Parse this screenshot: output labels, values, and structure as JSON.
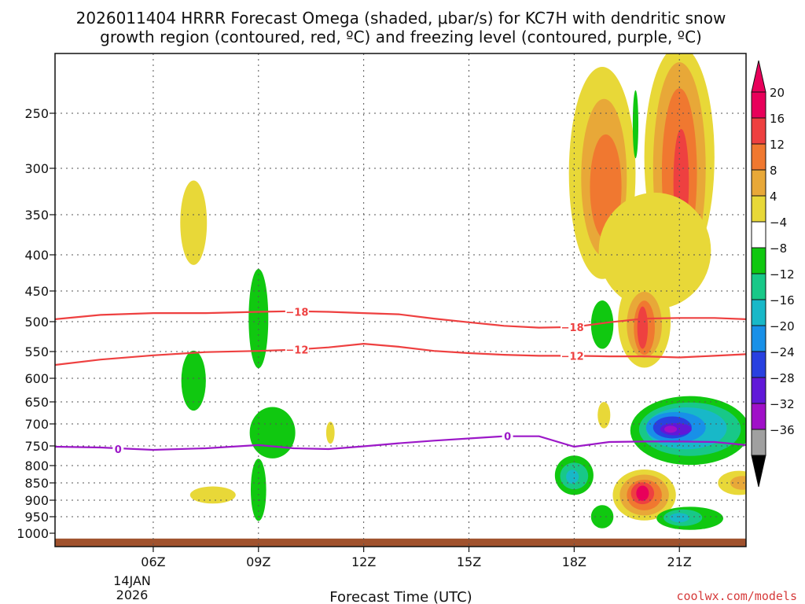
{
  "chart_data": {
    "type": "contour",
    "title_line1": "2026011404 HRRR Forecast Omega (shaded, μbar/s) for KC7H with dendritic snow",
    "title_line2": "growth region (contoured, red, ºC) and freezing level (contoured, purple, ºC)",
    "xlabel": "Forecast Time (UTC)",
    "ylabel": "",
    "credit": "coolwx.com/models",
    "x_range": [
      3.2,
      22.9
    ],
    "y_range_hpa": [
      200,
      1025
    ],
    "x_ticks": [
      {
        "value": 6,
        "label": "06Z"
      },
      {
        "value": 9,
        "label": "09Z"
      },
      {
        "value": 12,
        "label": "12Z"
      },
      {
        "value": 15,
        "label": "15Z"
      },
      {
        "value": 18,
        "label": "18Z"
      },
      {
        "value": 21,
        "label": "21Z"
      }
    ],
    "date_label_line1": "14JAN",
    "date_label_line2": "2026",
    "y_ticks": [
      250,
      300,
      350,
      400,
      450,
      500,
      550,
      600,
      650,
      700,
      750,
      800,
      850,
      900,
      950,
      1000
    ],
    "grid_y_levels": [
      250,
      300,
      350,
      400,
      450,
      500,
      550,
      600,
      650,
      700,
      750,
      800,
      850,
      900,
      950
    ],
    "colorbar": {
      "labels": [
        "20",
        "16",
        "12",
        "8",
        "4",
        "−4",
        "−8",
        "−12",
        "−16",
        "−20",
        "−24",
        "−28",
        "−32",
        "−36"
      ],
      "colors": [
        "#e8005a",
        "#ee4040",
        "#f07830",
        "#e8a838",
        "#e8d838",
        "#ffffff",
        "#10c810",
        "#18c888",
        "#18b8c8",
        "#1890e8",
        "#2840e0",
        "#6018d8",
        "#a010c8",
        "#a0a0a0"
      ]
    },
    "temperature_contours": [
      {
        "name": "dgz-minus-18",
        "label": "−18",
        "color": "#ee4040",
        "points": [
          [
            3.2,
            496
          ],
          [
            4.5,
            489
          ],
          [
            6,
            486
          ],
          [
            7.5,
            486
          ],
          [
            9,
            484
          ],
          [
            10,
            483
          ],
          [
            11,
            484
          ],
          [
            12,
            486
          ],
          [
            13,
            488
          ],
          [
            14,
            495
          ],
          [
            15,
            501
          ],
          [
            16,
            507
          ],
          [
            17,
            510
          ],
          [
            18,
            509
          ],
          [
            19,
            501
          ],
          [
            20,
            495
          ],
          [
            21,
            494
          ],
          [
            22,
            494
          ],
          [
            22.9,
            496
          ]
        ],
        "label_positions": [
          [
            10.1,
            484
          ],
          [
            17.95,
            509
          ]
        ]
      },
      {
        "name": "dgz-minus-12",
        "label": "−12",
        "color": "#ee4040",
        "points": [
          [
            3.2,
            575
          ],
          [
            4.5,
            565
          ],
          [
            6,
            557
          ],
          [
            7.5,
            551
          ],
          [
            9,
            549
          ],
          [
            10,
            547
          ],
          [
            11,
            543
          ],
          [
            12,
            537
          ],
          [
            13,
            542
          ],
          [
            14,
            549
          ],
          [
            15,
            553
          ],
          [
            16,
            556
          ],
          [
            17,
            558
          ],
          [
            18,
            558
          ],
          [
            19,
            559
          ],
          [
            20,
            559
          ],
          [
            21,
            561
          ],
          [
            22,
            558
          ],
          [
            22.9,
            555
          ]
        ],
        "label_positions": [
          [
            10.1,
            547
          ],
          [
            17.95,
            558
          ]
        ]
      },
      {
        "name": "freezing-level-0",
        "label": "0",
        "color": "#9c18c8",
        "points": [
          [
            3.2,
            752
          ],
          [
            4.5,
            754
          ],
          [
            5,
            756
          ],
          [
            6,
            760
          ],
          [
            7.5,
            756
          ],
          [
            9,
            748
          ],
          [
            10,
            756
          ],
          [
            11,
            758
          ],
          [
            12,
            751
          ],
          [
            13,
            744
          ],
          [
            14,
            738
          ],
          [
            15,
            733
          ],
          [
            16,
            728
          ],
          [
            17,
            728
          ],
          [
            18,
            752
          ],
          [
            19,
            741
          ],
          [
            20,
            740
          ],
          [
            21,
            740
          ],
          [
            22,
            741
          ],
          [
            22.9,
            748
          ]
        ],
        "label_positions": [
          [
            5.0,
            758
          ],
          [
            16.1,
            728
          ]
        ]
      }
    ],
    "omega_regions": [
      {
        "value": 4,
        "color": "#e8d838",
        "center": [
          7.15,
          360
        ],
        "radii": [
          0.38,
          50
        ]
      },
      {
        "value": -4,
        "color": "#10c810",
        "center": [
          9.0,
          495
        ],
        "radii": [
          0.28,
          80
        ]
      },
      {
        "value": -4,
        "color": "#10c810",
        "center": [
          7.15,
          605
        ],
        "radii": [
          0.35,
          60
        ]
      },
      {
        "value": -4,
        "color": "#10c810",
        "center": [
          9.4,
          720
        ],
        "radii": [
          0.65,
          60
        ]
      },
      {
        "value": -4,
        "color": "#10c810",
        "center": [
          9.0,
          870
        ],
        "radii": [
          0.22,
          90
        ]
      },
      {
        "value": 4,
        "color": "#e8d838",
        "center": [
          11.05,
          720
        ],
        "radii": [
          0.12,
          25
        ]
      },
      {
        "value": 4,
        "color": "#e8d838",
        "center": [
          7.7,
          885
        ],
        "radii": [
          0.65,
          25
        ]
      },
      {
        "value": 4,
        "color": "#e8d838",
        "center": [
          18.8,
          305
        ],
        "radii": [
          0.95,
          110
        ]
      },
      {
        "value": 8,
        "color": "#e8a838",
        "center": [
          18.85,
          310
        ],
        "radii": [
          0.65,
          80
        ]
      },
      {
        "value": 12,
        "color": "#f07830",
        "center": [
          18.9,
          320
        ],
        "radii": [
          0.45,
          55
        ]
      },
      {
        "value": 4,
        "color": "#e8d838",
        "center": [
          21.0,
          290
        ],
        "radii": [
          1.0,
          140
        ]
      },
      {
        "value": 8,
        "color": "#e8a838",
        "center": [
          21.0,
          300
        ],
        "radii": [
          0.75,
          115
        ]
      },
      {
        "value": 12,
        "color": "#f07830",
        "center": [
          21.0,
          305
        ],
        "radii": [
          0.5,
          85
        ]
      },
      {
        "value": 16,
        "color": "#ee4040",
        "center": [
          21.05,
          315
        ],
        "radii": [
          0.22,
          55
        ]
      },
      {
        "value": 4,
        "color": "#e8d838",
        "center": [
          20.3,
          395
        ],
        "radii": [
          1.6,
          75
        ]
      },
      {
        "value": 4,
        "color": "#e8d838",
        "center": [
          20.0,
          500
        ],
        "radii": [
          0.75,
          75
        ]
      },
      {
        "value": 8,
        "color": "#e8a838",
        "center": [
          20.0,
          505
        ],
        "radii": [
          0.5,
          55
        ]
      },
      {
        "value": 12,
        "color": "#f07830",
        "center": [
          20.0,
          510
        ],
        "radii": [
          0.3,
          45
        ]
      },
      {
        "value": 16,
        "color": "#ee4040",
        "center": [
          19.95,
          510
        ],
        "radii": [
          0.15,
          35
        ]
      },
      {
        "value": -4,
        "color": "#10c810",
        "center": [
          19.75,
          260
        ],
        "radii": [
          0.08,
          30
        ]
      },
      {
        "value": -4,
        "color": "#10c810",
        "center": [
          18.8,
          505
        ],
        "radii": [
          0.32,
          40
        ]
      },
      {
        "value": 4,
        "color": "#e8d838",
        "center": [
          18.85,
          680
        ],
        "radii": [
          0.18,
          30
        ]
      },
      {
        "value": -4,
        "color": "#10c810",
        "center": [
          21.3,
          715
        ],
        "radii": [
          1.7,
          80
        ]
      },
      {
        "value": -8,
        "color": "#18c888",
        "center": [
          21.3,
          712
        ],
        "radii": [
          1.45,
          62
        ]
      },
      {
        "value": -12,
        "color": "#18b8c8",
        "center": [
          21.2,
          710
        ],
        "radii": [
          1.15,
          48
        ]
      },
      {
        "value": -16,
        "color": "#1890e8",
        "center": [
          20.9,
          708
        ],
        "radii": [
          0.85,
          35
        ]
      },
      {
        "value": -20,
        "color": "#2840e0",
        "center": [
          20.8,
          708
        ],
        "radii": [
          0.55,
          25
        ]
      },
      {
        "value": -24,
        "color": "#6018d8",
        "center": [
          20.9,
          712
        ],
        "radii": [
          0.45,
          14
        ]
      },
      {
        "value": -28,
        "color": "#a010c8",
        "center": [
          20.75,
          712
        ],
        "radii": [
          0.18,
          8
        ]
      },
      {
        "value": -4,
        "color": "#10c810",
        "center": [
          18.0,
          828
        ],
        "radii": [
          0.55,
          55
        ]
      },
      {
        "value": -8,
        "color": "#18c888",
        "center": [
          18.0,
          830
        ],
        "radii": [
          0.4,
          38
        ]
      },
      {
        "value": -12,
        "color": "#18b8c8",
        "center": [
          17.95,
          832
        ],
        "radii": [
          0.18,
          20
        ]
      },
      {
        "value": 4,
        "color": "#e8d838",
        "center": [
          20.0,
          885
        ],
        "radii": [
          0.9,
          75
        ]
      },
      {
        "value": 8,
        "color": "#e8a838",
        "center": [
          20.0,
          885
        ],
        "radii": [
          0.7,
          60
        ]
      },
      {
        "value": 12,
        "color": "#f07830",
        "center": [
          20.0,
          885
        ],
        "radii": [
          0.5,
          45
        ]
      },
      {
        "value": 16,
        "color": "#ee4040",
        "center": [
          19.95,
          880
        ],
        "radii": [
          0.33,
          32
        ]
      },
      {
        "value": 20,
        "color": "#e8005a",
        "center": [
          19.95,
          880
        ],
        "radii": [
          0.18,
          22
        ]
      },
      {
        "value": 4,
        "color": "#e8d838",
        "center": [
          22.7,
          850
        ],
        "radii": [
          0.6,
          35
        ]
      },
      {
        "value": 8,
        "color": "#e8a838",
        "center": [
          22.8,
          850
        ],
        "radii": [
          0.35,
          20
        ]
      },
      {
        "value": -4,
        "color": "#10c810",
        "center": [
          18.8,
          950
        ],
        "radii": [
          0.32,
          35
        ]
      },
      {
        "value": -4,
        "color": "#10c810",
        "center": [
          21.3,
          955
        ],
        "radii": [
          0.95,
          35
        ]
      },
      {
        "value": -8,
        "color": "#18c888",
        "center": [
          21.1,
          953
        ],
        "radii": [
          0.55,
          25
        ]
      },
      {
        "value": -12,
        "color": "#18b8c8",
        "center": [
          21.0,
          953
        ],
        "radii": [
          0.28,
          14
        ]
      }
    ],
    "terrain": {
      "color": "#a0522d",
      "surface_pressure_hpa": 1010
    }
  }
}
